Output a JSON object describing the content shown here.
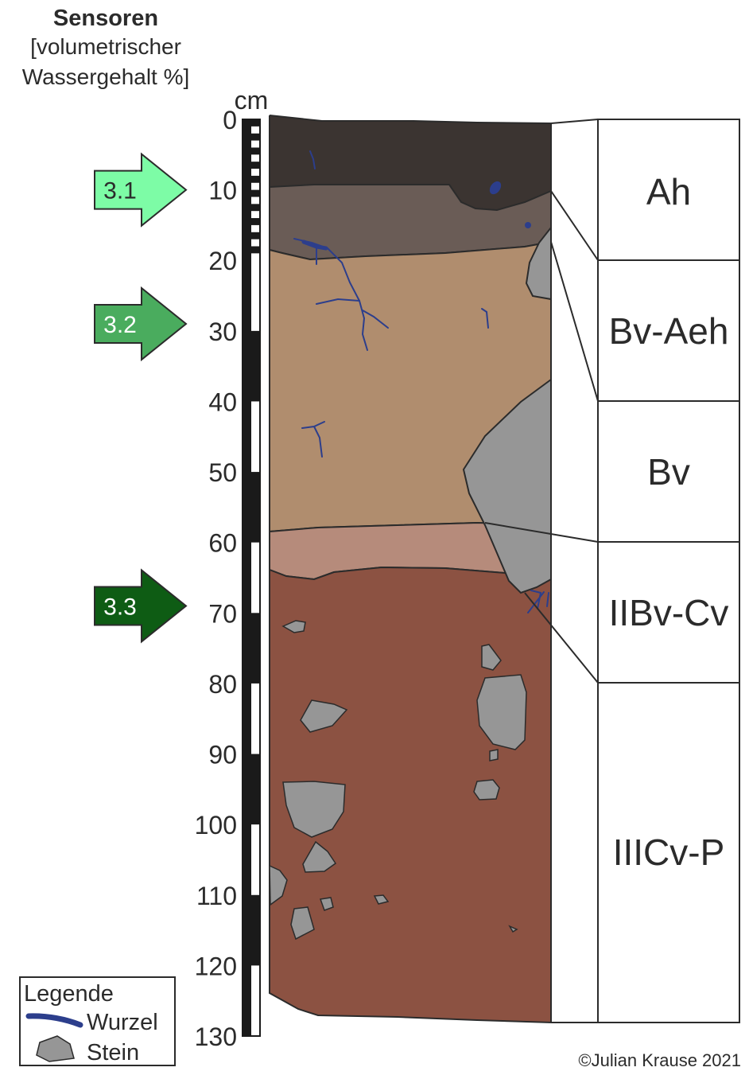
{
  "header": {
    "title": "Sensoren",
    "subtitle_line1": "[volumetrischer",
    "subtitle_line2": "Wassergehalt %]"
  },
  "scale": {
    "unit": "cm",
    "ticks": [
      0,
      10,
      20,
      30,
      40,
      50,
      60,
      70,
      80,
      90,
      100,
      110,
      120,
      130
    ],
    "max_depth_cm": 130
  },
  "sensors": [
    {
      "label": "3.1",
      "depth_cm": 10,
      "color": "#7dfca6",
      "text_color": "#2b2b2b"
    },
    {
      "label": "3.2",
      "depth_cm": 29,
      "color": "#4aac5e",
      "text_color": "#ffffff"
    },
    {
      "label": "3.3",
      "depth_cm": 69,
      "color": "#0e5c14",
      "text_color": "#ffffff"
    }
  ],
  "horizons": [
    {
      "name": "Ah",
      "color": "#3b3431"
    },
    {
      "name": "Bv-Aeh",
      "color": "#6a5c56"
    },
    {
      "name": "Bv",
      "color": "#b08d6e"
    },
    {
      "name": "IIBv-Cv",
      "color": "#b68b7b"
    },
    {
      "name": "IIICv-P",
      "color": "#8c5242"
    }
  ],
  "legend": {
    "title": "Legende",
    "root_label": "Wurzel",
    "stone_label": "Stein",
    "root_color": "#2c3e8c",
    "stone_color": "#969696"
  },
  "copyright": "©Julian Krause 2021"
}
